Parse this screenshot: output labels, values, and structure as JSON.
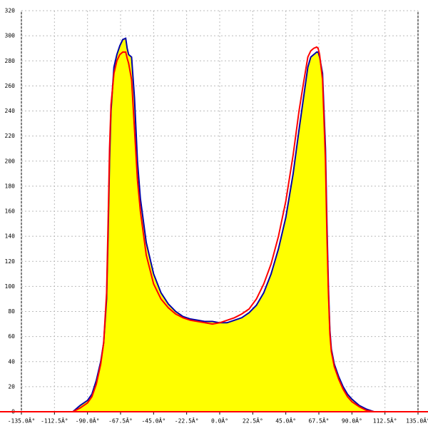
{
  "chart_data": {
    "type": "line",
    "x": [
      -105,
      -100,
      -95,
      -90,
      -87,
      -84,
      -81,
      -79,
      -77,
      -76,
      -75,
      -74,
      -72,
      -70,
      -68,
      -66,
      -64,
      -63,
      -62,
      -60,
      -58,
      -56,
      -54,
      -50,
      -45,
      -40,
      -35,
      -30,
      -25,
      -20,
      -15,
      -10,
      -5,
      0,
      5,
      10,
      15,
      20,
      25,
      30,
      35,
      40,
      45,
      50,
      54,
      57,
      60,
      62,
      64,
      66,
      67,
      68,
      70,
      72,
      73,
      74,
      75,
      76,
      78,
      81,
      84,
      87,
      90,
      95,
      100,
      105
    ],
    "series": [
      {
        "color": "#0000aa",
        "values": [
          0,
          0,
          5,
          9,
          14,
          25,
          40,
          55,
          90,
          140,
          200,
          240,
          275,
          285,
          292,
          297,
          298,
          290,
          285,
          283,
          250,
          200,
          170,
          135,
          110,
          95,
          86,
          80,
          76,
          74,
          73,
          72,
          72,
          71,
          71,
          73,
          75,
          79,
          85,
          95,
          110,
          130,
          155,
          190,
          225,
          250,
          275,
          283,
          285,
          287,
          287,
          283,
          270,
          210,
          150,
          100,
          65,
          50,
          38,
          28,
          20,
          14,
          10,
          5,
          2,
          0
        ]
      },
      {
        "color": "#ff0000",
        "values": [
          0,
          0,
          3,
          7,
          12,
          22,
          38,
          55,
          95,
          150,
          210,
          245,
          270,
          280,
          285,
          287,
          287,
          282,
          278,
          265,
          225,
          185,
          160,
          125,
          102,
          90,
          83,
          78,
          75,
          73,
          72,
          71,
          70,
          71,
          73,
          75,
          78,
          82,
          90,
          102,
          118,
          140,
          168,
          205,
          240,
          262,
          283,
          288,
          290,
          291,
          290,
          285,
          265,
          200,
          140,
          95,
          62,
          48,
          36,
          26,
          18,
          12,
          8,
          4,
          1,
          0
        ]
      }
    ],
    "fill_color": "#ffff00",
    "xlim": [
      -135,
      135
    ],
    "xticks": [
      {
        "value": -135,
        "label": "-135.0Â°"
      },
      {
        "value": -112.5,
        "label": "-112.5Â°"
      },
      {
        "value": -90,
        "label": "-90.0Â°"
      },
      {
        "value": -67.5,
        "label": "-67.5Â°"
      },
      {
        "value": -45,
        "label": "-45.0Â°"
      },
      {
        "value": -22.5,
        "label": "-22.5Â°"
      },
      {
        "value": 0,
        "label": "0.0Â°"
      },
      {
        "value": 22.5,
        "label": "22.5Â°"
      },
      {
        "value": 45,
        "label": "45.0Â°"
      },
      {
        "value": 67.5,
        "label": "67.5Â°"
      },
      {
        "value": 90,
        "label": "90.0Â°"
      },
      {
        "value": 112.5,
        "label": "112.5Â°"
      },
      {
        "value": 135,
        "label": "135.0Â°"
      }
    ],
    "ylim": [
      0,
      320
    ],
    "yticks": [
      0,
      20,
      40,
      60,
      80,
      100,
      120,
      140,
      160,
      180,
      200,
      220,
      240,
      260,
      280,
      300,
      320
    ],
    "grid": true
  }
}
